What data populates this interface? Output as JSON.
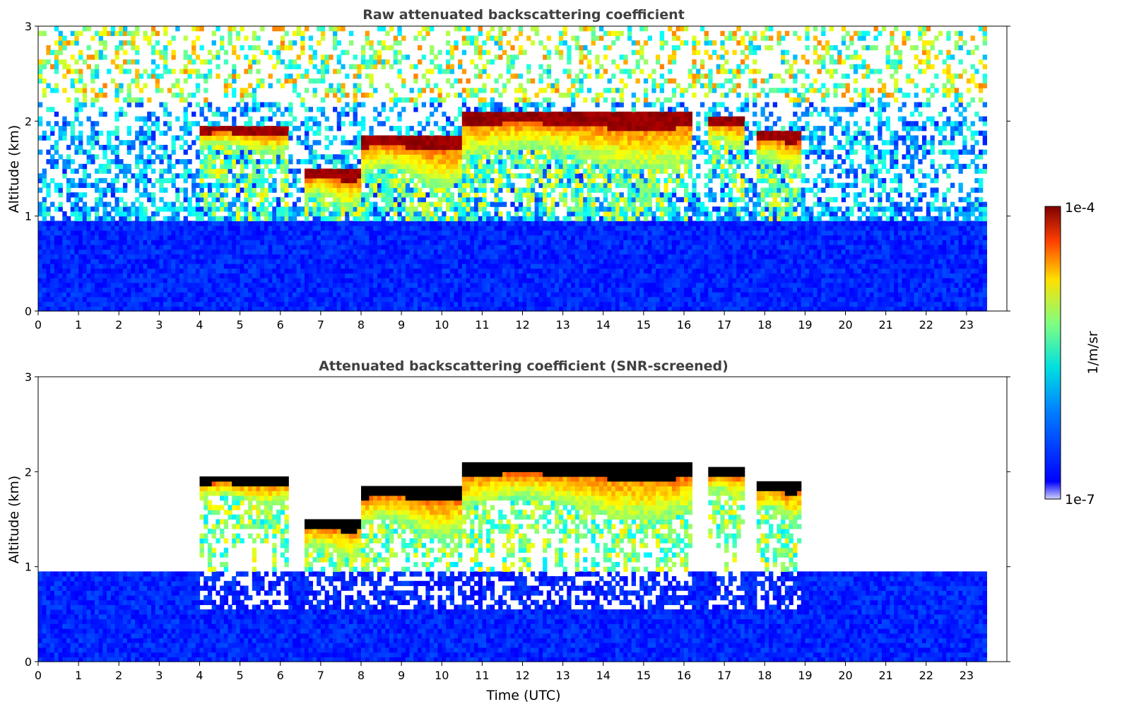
{
  "chart_data": [
    {
      "type": "heatmap",
      "title": "Raw attenuated backscattering coefficient",
      "xlabel": "",
      "ylabel": "Altitude (km)",
      "xlim": [
        0,
        24
      ],
      "ylim": [
        0,
        3
      ],
      "x_ticks": [
        "0",
        "1",
        "2",
        "3",
        "4",
        "5",
        "6",
        "7",
        "8",
        "9",
        "10",
        "11",
        "12",
        "13",
        "14",
        "15",
        "16",
        "17",
        "18",
        "19",
        "20",
        "21",
        "22",
        "23"
      ],
      "y_ticks": [
        "0",
        "1",
        "2",
        "3"
      ],
      "data_extent_x": [
        0,
        23.5
      ],
      "screened": false,
      "cloud_layers": [
        {
          "x_start": 4.0,
          "x_end": 6.2,
          "base_km": 1.7,
          "top_km": 1.85
        },
        {
          "x_start": 6.6,
          "x_end": 8.0,
          "base_km": 1.15,
          "top_km": 1.4
        },
        {
          "x_start": 8.0,
          "x_end": 10.5,
          "base_km": 1.4,
          "top_km": 1.75
        },
        {
          "x_start": 10.5,
          "x_end": 16.2,
          "base_km": 1.6,
          "top_km": 2.0
        },
        {
          "x_start": 16.6,
          "x_end": 17.5,
          "base_km": 1.75,
          "top_km": 1.95
        },
        {
          "x_start": 17.8,
          "x_end": 18.9,
          "base_km": 1.55,
          "top_km": 1.8
        }
      ],
      "boundary_layer_top_km": 0.95
    },
    {
      "type": "heatmap",
      "title": "Attenuated backscattering coefficient (SNR-screened)",
      "xlabel": "Time (UTC)",
      "ylabel": "Altitude (km)",
      "xlim": [
        0,
        24
      ],
      "ylim": [
        0,
        3
      ],
      "x_ticks": [
        "0",
        "1",
        "2",
        "3",
        "4",
        "5",
        "6",
        "7",
        "8",
        "9",
        "10",
        "11",
        "12",
        "13",
        "14",
        "15",
        "16",
        "17",
        "18",
        "19",
        "20",
        "21",
        "22",
        "23"
      ],
      "y_ticks": [
        "0",
        "1",
        "2",
        "3"
      ],
      "data_extent_x": [
        0,
        23.5
      ],
      "screened": true,
      "boundary_layer_top_km": 0.95
    }
  ],
  "colorbar": {
    "label": "1/m/sr",
    "max_label": "1e-4",
    "min_label": "1e-7",
    "scale": "log",
    "range": [
      1e-07,
      0.0001
    ],
    "colormap": "jet"
  }
}
